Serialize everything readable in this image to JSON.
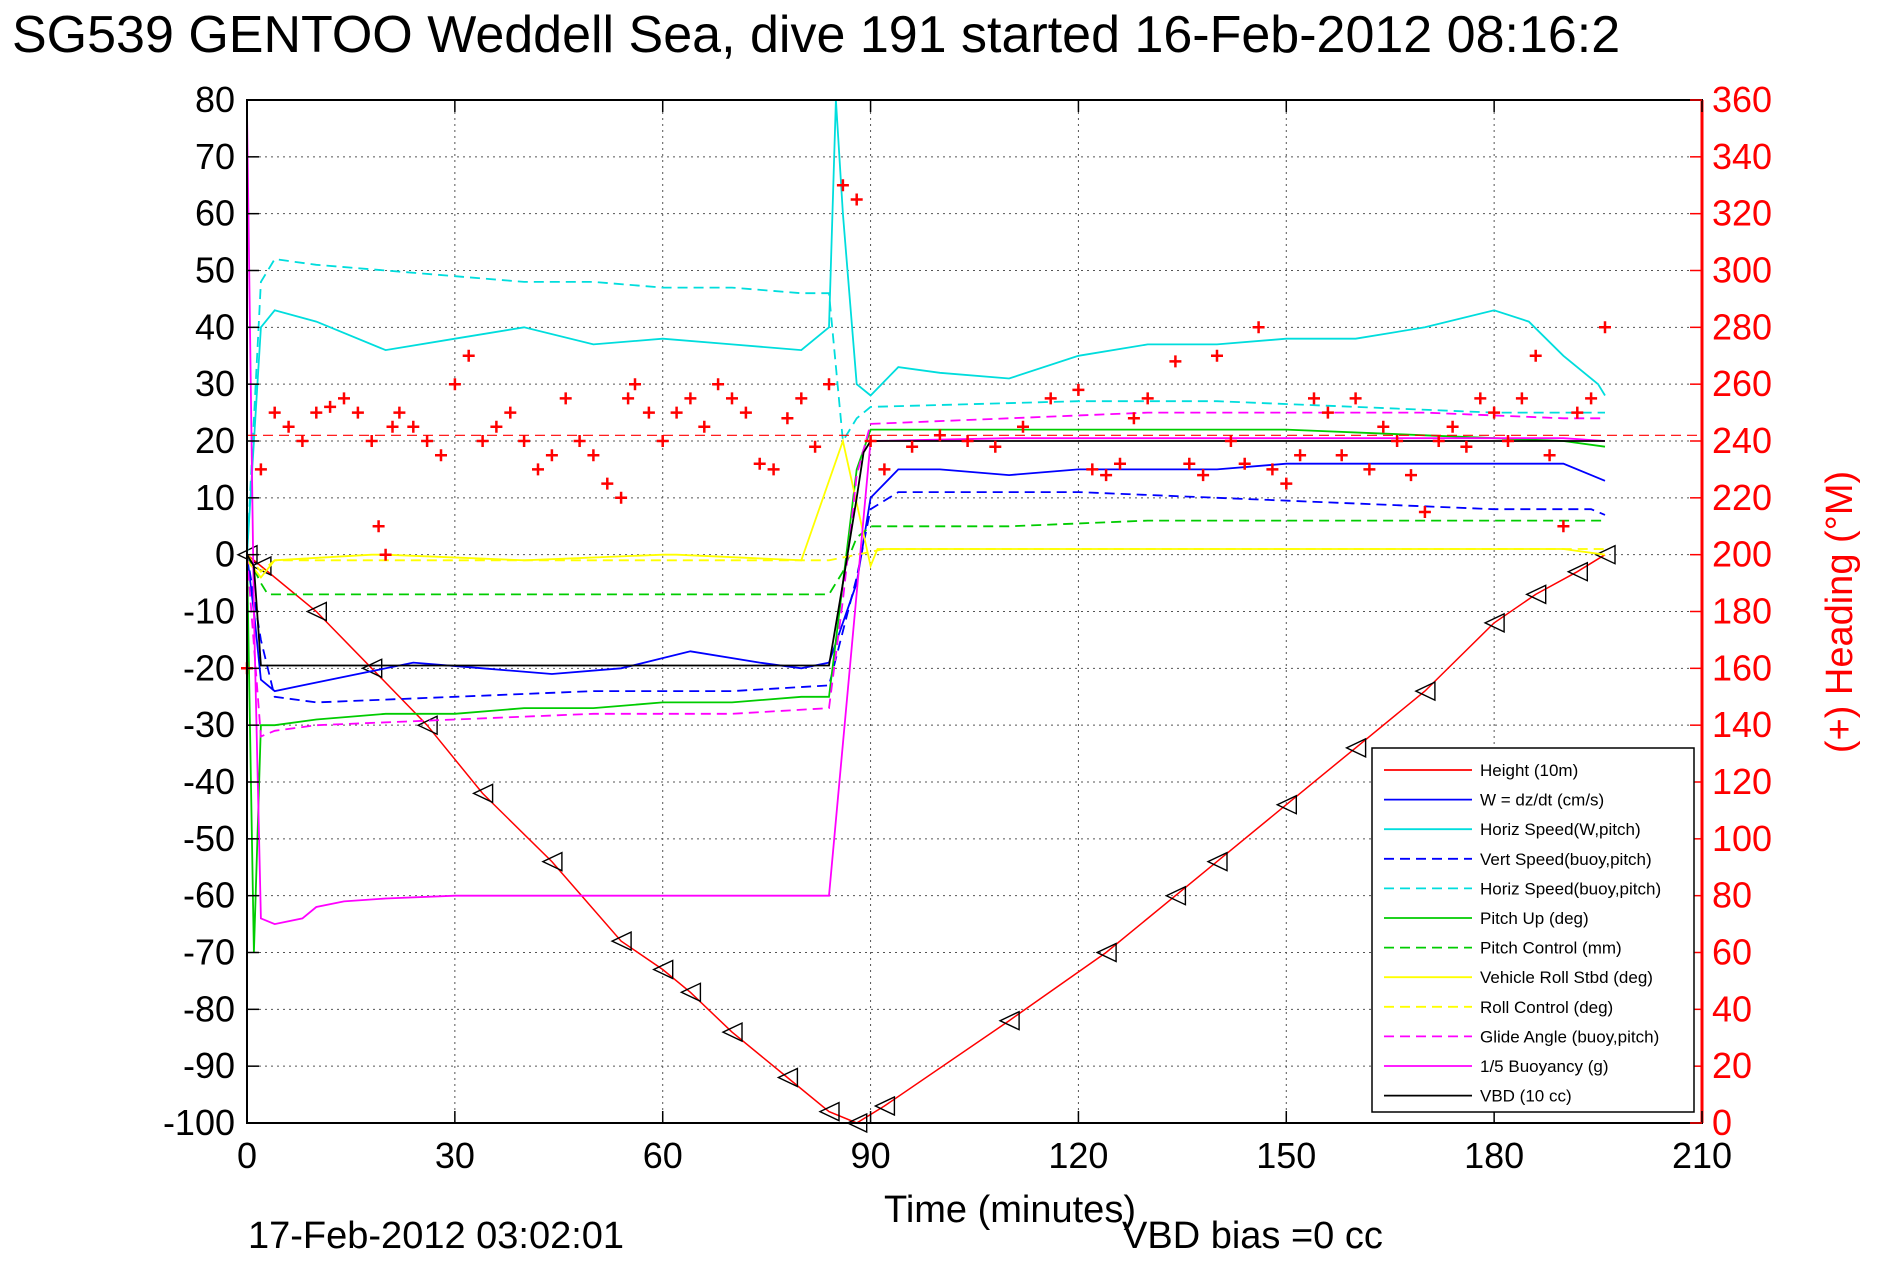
{
  "chart_data": {
    "type": "line",
    "title": "SG539 GENTOO Weddell Sea, dive 191 started 16-Feb-2012 08:16:2",
    "xlabel": "Time (minutes)",
    "ylabel": "",
    "ylabel_right": "(+) Heading (°M)",
    "xlim": [
      0,
      210
    ],
    "ylim": [
      -100,
      80
    ],
    "ylim_right": [
      0,
      360
    ],
    "xticks": [
      "0",
      "30",
      "60",
      "90",
      "120",
      "150",
      "180",
      "210"
    ],
    "yticks": [
      "80",
      "70",
      "60",
      "50",
      "40",
      "30",
      "20",
      "10",
      "0",
      "-10",
      "-20",
      "-30",
      "-40",
      "-50",
      "-60",
      "-70",
      "-80",
      "-90",
      "-100"
    ],
    "yticks_right": [
      "360",
      "340",
      "320",
      "300",
      "280",
      "260",
      "240",
      "220",
      "200",
      "180",
      "160",
      "140",
      "120",
      "100",
      "80",
      "60",
      "40",
      "20",
      "0"
    ],
    "grid": true,
    "legend_position": "bottom-right",
    "footer_left": "17-Feb-2012 03:02:01",
    "footer_right": "VBD bias =0 cc",
    "series": [
      {
        "name": "Height (10m)",
        "color": "#ff0000",
        "style": "solid",
        "marker": "triangle",
        "x": [
          0,
          2,
          10,
          18,
          26,
          34,
          44,
          54,
          60,
          64,
          70,
          78,
          84,
          88,
          92,
          110,
          124,
          134,
          140,
          150,
          160,
          170,
          180,
          186,
          192,
          196
        ],
        "y": [
          0,
          -2,
          -10,
          -20,
          -30,
          -42,
          -54,
          -68,
          -73,
          -77,
          -84,
          -92,
          -98,
          -100,
          -97,
          -82,
          -70,
          -60,
          -54,
          -44,
          -34,
          -24,
          -12,
          -7,
          -3,
          0
        ]
      },
      {
        "name": "W = dz/dt (cm/s)",
        "color": "#0000ff",
        "style": "solid",
        "x": [
          0,
          1,
          2,
          4,
          8,
          16,
          24,
          34,
          44,
          54,
          64,
          74,
          80,
          84,
          88,
          90,
          94,
          100,
          110,
          120,
          130,
          140,
          150,
          160,
          170,
          180,
          190,
          194,
          196
        ],
        "y": [
          0,
          -10,
          -22,
          -24,
          -23,
          -21,
          -19,
          -20,
          -21,
          -20,
          -17,
          -19,
          -20,
          -19,
          -5,
          10,
          15,
          15,
          14,
          15,
          15,
          15,
          16,
          16,
          16,
          16,
          16,
          14,
          13
        ]
      },
      {
        "name": "Horiz Speed(W,pitch)",
        "color": "#00dddd",
        "style": "solid",
        "x": [
          0,
          2,
          4,
          10,
          20,
          30,
          40,
          50,
          60,
          70,
          80,
          84,
          85,
          86,
          88,
          90,
          94,
          100,
          110,
          120,
          130,
          140,
          150,
          160,
          170,
          180,
          185,
          190,
          195,
          196
        ],
        "y": [
          0,
          40,
          43,
          41,
          36,
          38,
          40,
          37,
          38,
          37,
          36,
          40,
          80,
          60,
          30,
          28,
          33,
          32,
          31,
          35,
          37,
          37,
          38,
          38,
          40,
          43,
          41,
          35,
          30,
          28
        ]
      },
      {
        "name": "Vert Speed(buoy,pitch)",
        "color": "#0000ff",
        "style": "dashed",
        "x": [
          0,
          2,
          4,
          10,
          30,
          50,
          70,
          84,
          88,
          90,
          94,
          120,
          140,
          160,
          180,
          194,
          196
        ],
        "y": [
          0,
          -15,
          -25,
          -26,
          -25,
          -24,
          -24,
          -23,
          -4,
          8,
          11,
          11,
          10,
          9,
          8,
          8,
          7
        ]
      },
      {
        "name": "Horiz Speed(buoy,pitch)",
        "color": "#00dddd",
        "style": "dashed",
        "x": [
          0,
          2,
          4,
          10,
          20,
          30,
          40,
          50,
          60,
          70,
          80,
          84,
          86,
          88,
          90,
          120,
          140,
          160,
          180,
          196
        ],
        "y": [
          0,
          48,
          52,
          51,
          50,
          49,
          48,
          48,
          47,
          47,
          46,
          46,
          20,
          24,
          26,
          27,
          27,
          26,
          25,
          25
        ]
      },
      {
        "name": "Pitch Up (deg)",
        "color": "#00cc00",
        "style": "solid",
        "x": [
          0,
          1,
          2,
          4,
          10,
          20,
          30,
          40,
          50,
          60,
          70,
          80,
          84,
          86,
          88,
          90,
          94,
          110,
          130,
          150,
          170,
          190,
          196
        ],
        "y": [
          0,
          -70,
          -30,
          -30,
          -29,
          -28,
          -28,
          -27,
          -27,
          -26,
          -26,
          -25,
          -25,
          -5,
          15,
          22,
          22,
          22,
          22,
          22,
          21,
          20,
          19
        ]
      },
      {
        "name": "Pitch Control (mm)",
        "color": "#00cc00",
        "style": "dashed",
        "x": [
          0,
          2,
          3,
          10,
          30,
          50,
          70,
          84,
          86,
          88,
          90,
          110,
          130,
          150,
          170,
          190,
          196
        ],
        "y": [
          0,
          -5,
          -7,
          -7,
          -7,
          -7,
          -7,
          -7,
          -3,
          3,
          5,
          5,
          6,
          6,
          6,
          6,
          6
        ]
      },
      {
        "name": "Vehicle Roll Stbd (deg)",
        "color": "#ffff00",
        "style": "solid",
        "x": [
          0,
          2,
          4,
          18,
          20,
          40,
          60,
          62,
          80,
          86,
          90,
          91,
          92,
          110,
          130,
          150,
          170,
          190,
          196
        ],
        "y": [
          -1,
          -4,
          -1,
          0,
          0,
          -1,
          0,
          0,
          -1,
          20,
          -2,
          1,
          1,
          1,
          1,
          1,
          1,
          1,
          0
        ]
      },
      {
        "name": "Roll Control (deg)",
        "color": "#ffff00",
        "style": "dashed",
        "x": [
          0,
          2,
          4,
          30,
          60,
          84,
          88,
          92,
          130,
          160,
          196
        ],
        "y": [
          0,
          -3,
          -1,
          -1,
          -1,
          -1,
          0,
          1,
          1,
          1,
          1
        ]
      },
      {
        "name": "Glide Angle (buoy,pitch)",
        "color": "#ff00ff",
        "style": "dashed",
        "x": [
          0,
          2,
          4,
          10,
          30,
          50,
          70,
          84,
          86,
          88,
          90,
          110,
          130,
          150,
          170,
          190,
          196
        ],
        "y": [
          0,
          -32,
          -31,
          -30,
          -29,
          -28,
          -28,
          -27,
          -8,
          14,
          23,
          24,
          25,
          25,
          25,
          24,
          24
        ]
      },
      {
        "name": "1/5 Buoyancy (g)",
        "color": "#ff00ff",
        "style": "solid",
        "x": [
          0,
          1,
          2,
          4,
          8,
          10,
          14,
          20,
          30,
          50,
          70,
          84,
          90,
          110,
          130,
          150,
          170,
          190,
          196
        ],
        "y": [
          78,
          -10,
          -64,
          -65,
          -64,
          -62,
          -61,
          -60.5,
          -60,
          -60,
          -60,
          -60,
          20,
          20.5,
          20.5,
          20.5,
          20.5,
          20.5,
          20
        ]
      },
      {
        "name": "VBD (10 cc)",
        "color": "#000000",
        "style": "solid",
        "x": [
          0,
          1,
          2,
          10,
          30,
          60,
          84,
          86,
          88,
          89,
          90,
          110,
          130,
          150,
          170,
          190,
          196
        ],
        "y": [
          0,
          -2,
          -19.5,
          -19.5,
          -19.5,
          -19.5,
          -19.5,
          -5,
          10,
          18,
          20,
          20,
          20,
          20,
          20,
          20,
          20
        ]
      }
    ],
    "heading": {
      "name": "(+) Heading",
      "color": "#ff0000",
      "marker": "+",
      "axis": "right",
      "reference_value": 242,
      "x": [
        0,
        2,
        4,
        6,
        8,
        10,
        12,
        14,
        16,
        18,
        19,
        20,
        21,
        22,
        24,
        26,
        28,
        30,
        32,
        34,
        36,
        38,
        40,
        42,
        44,
        46,
        48,
        50,
        52,
        54,
        55,
        56,
        58,
        60,
        62,
        64,
        66,
        68,
        70,
        72,
        74,
        76,
        78,
        80,
        82,
        84,
        86,
        88,
        90,
        92,
        96,
        100,
        104,
        108,
        112,
        116,
        120,
        122,
        124,
        126,
        128,
        130,
        134,
        136,
        138,
        140,
        142,
        144,
        146,
        148,
        150,
        152,
        154,
        156,
        158,
        160,
        162,
        164,
        166,
        168,
        170,
        172,
        174,
        176,
        178,
        180,
        182,
        184,
        186,
        188,
        190,
        192,
        194,
        196
      ],
      "y": [
        160,
        230,
        250,
        245,
        240,
        250,
        252,
        255,
        250,
        240,
        210,
        200,
        245,
        250,
        245,
        240,
        235,
        260,
        270,
        240,
        245,
        250,
        240,
        230,
        235,
        255,
        240,
        235,
        225,
        220,
        255,
        260,
        250,
        240,
        250,
        255,
        245,
        260,
        255,
        250,
        232,
        230,
        248,
        255,
        238,
        260,
        330,
        325,
        240,
        230,
        238,
        242,
        240,
        238,
        245,
        255,
        258,
        230,
        228,
        232,
        248,
        255,
        268,
        232,
        228,
        270,
        240,
        232,
        280,
        230,
        225,
        235,
        255,
        250,
        235,
        255,
        230,
        245,
        240,
        228,
        215,
        240,
        245,
        238,
        255,
        250,
        240,
        255,
        270,
        235,
        210,
        250,
        255,
        280
      ]
    }
  }
}
